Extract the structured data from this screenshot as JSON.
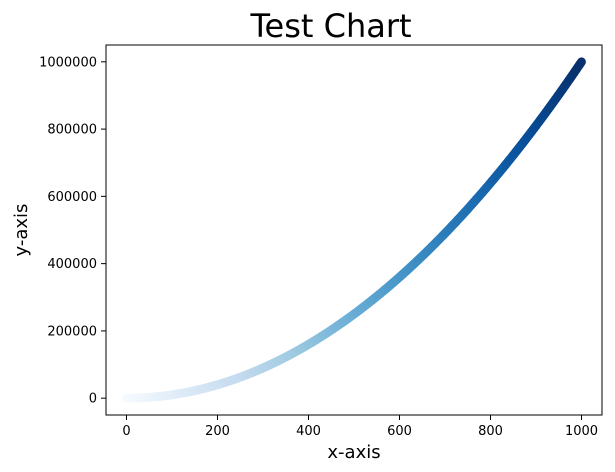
{
  "chart_data": {
    "type": "scatter",
    "title": "Test Chart",
    "xlabel": "x-axis",
    "ylabel": "y-axis",
    "xlim": [
      -45,
      1045
    ],
    "ylim": [
      -50000,
      1050000
    ],
    "x_ticks": [
      0,
      200,
      400,
      600,
      800,
      1000
    ],
    "y_ticks": [
      0,
      200000,
      400000,
      600000,
      800000,
      1000000
    ],
    "x_tick_labels": [
      "0",
      "200",
      "400",
      "600",
      "800",
      "1000"
    ],
    "y_tick_labels": [
      "0",
      "200000",
      "400000",
      "600000",
      "800000",
      "1000000"
    ],
    "x_range": [
      0,
      1000
    ],
    "relation": "y = x^2",
    "colormap": "Blues",
    "color_low": "#f7fbff",
    "color_high": "#08306b",
    "grid": false,
    "legend": "none"
  }
}
